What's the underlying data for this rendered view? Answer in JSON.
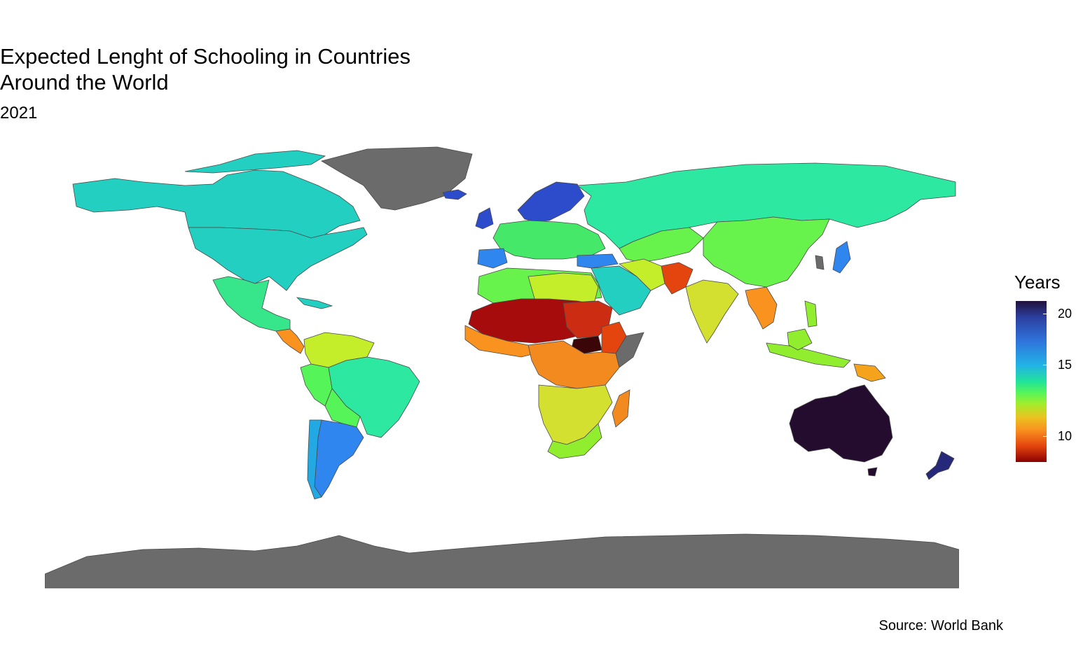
{
  "title": "Expected Lenght of Schooling in Countries Around the World",
  "subtitle": "2021",
  "caption": "Source: World Bank",
  "legend": {
    "title": "Years",
    "ticks": [
      "20",
      "15",
      "10"
    ],
    "range": [
      5.5,
      21.5
    ],
    "colors": [
      "#23103b",
      "#2f74dc",
      "#21e39a",
      "#a3ed2c",
      "#f9921f",
      "#8b0000"
    ]
  },
  "map": {
    "no_data_color": "#6b6b6b",
    "regions": [
      {
        "name": "Canada",
        "years": 16
      },
      {
        "name": "United States",
        "years": 16
      },
      {
        "name": "Mexico",
        "years": 15
      },
      {
        "name": "Brazil",
        "years": 15.5
      },
      {
        "name": "Argentina",
        "years": 18
      },
      {
        "name": "Russia",
        "years": 15.5
      },
      {
        "name": "China",
        "years": 14
      },
      {
        "name": "India",
        "years": 12
      },
      {
        "name": "Australia",
        "years": 21.5
      },
      {
        "name": "New Zealand",
        "years": 20
      },
      {
        "name": "Sahel",
        "years": 6.5
      },
      {
        "name": "South Sudan",
        "years": 5.5
      },
      {
        "name": "Southern Africa",
        "years": 12.5
      },
      {
        "name": "Greenland",
        "years": null
      },
      {
        "name": "Antarctica",
        "years": null
      }
    ]
  }
}
